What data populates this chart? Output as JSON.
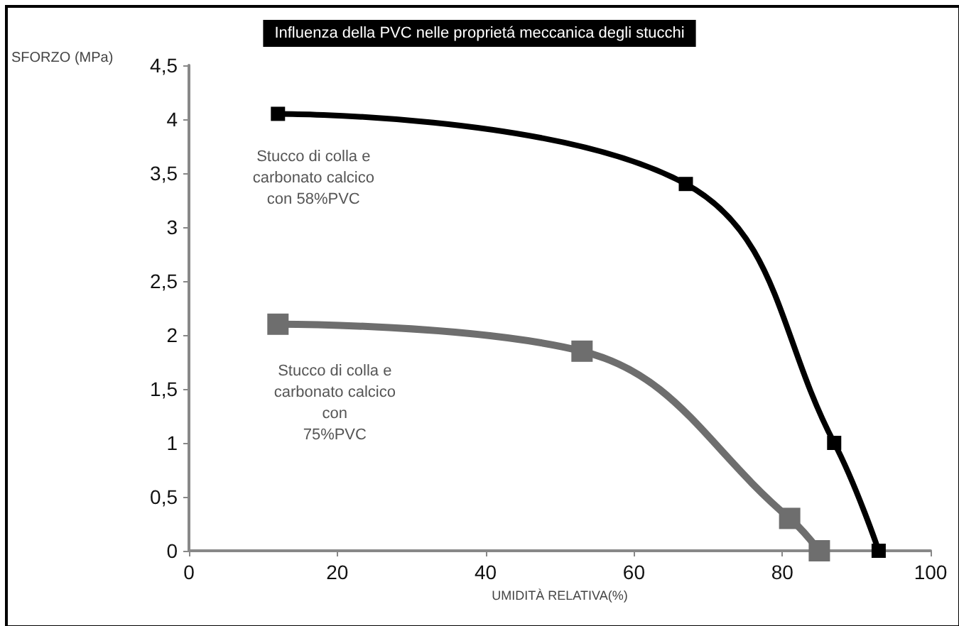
{
  "chart_data": {
    "type": "line",
    "title": "Influenza della PVC nelle proprietá meccanica degli stucchi",
    "xlabel": "UMIDITÀ RELATIVA(%)",
    "ylabel": "SFORZO (MPa)",
    "series": [
      {
        "name": "Stucco di colla e\ncarbonato calcico\ncon 58%PVC",
        "color": "#000000",
        "x": [
          12,
          67,
          87,
          93
        ],
        "values": [
          4.05,
          3.4,
          1,
          0
        ]
      },
      {
        "name": "Stucco di colla e\ncarbonato calcico\ncon\n75%PVC",
        "color": "#6e6e6e",
        "x": [
          12,
          53,
          81,
          85
        ],
        "values": [
          2.1,
          1.85,
          0.3,
          0
        ]
      }
    ],
    "xlim": [
      0,
      100
    ],
    "xticks": [
      0,
      20,
      40,
      60,
      80,
      100
    ],
    "ylim": [
      0,
      4.5
    ],
    "yticks": [
      0,
      {
        "value": 0.5,
        "label": "0,5"
      },
      1,
      {
        "value": 1.5,
        "label": "1,5"
      },
      2,
      {
        "value": 2.5,
        "label": "2,5"
      },
      3,
      {
        "value": 3.5,
        "label": "3,5"
      },
      4,
      {
        "value": 4.5,
        "label": "4,5"
      }
    ],
    "grid": false,
    "marker": "square",
    "line_style": "solid"
  }
}
